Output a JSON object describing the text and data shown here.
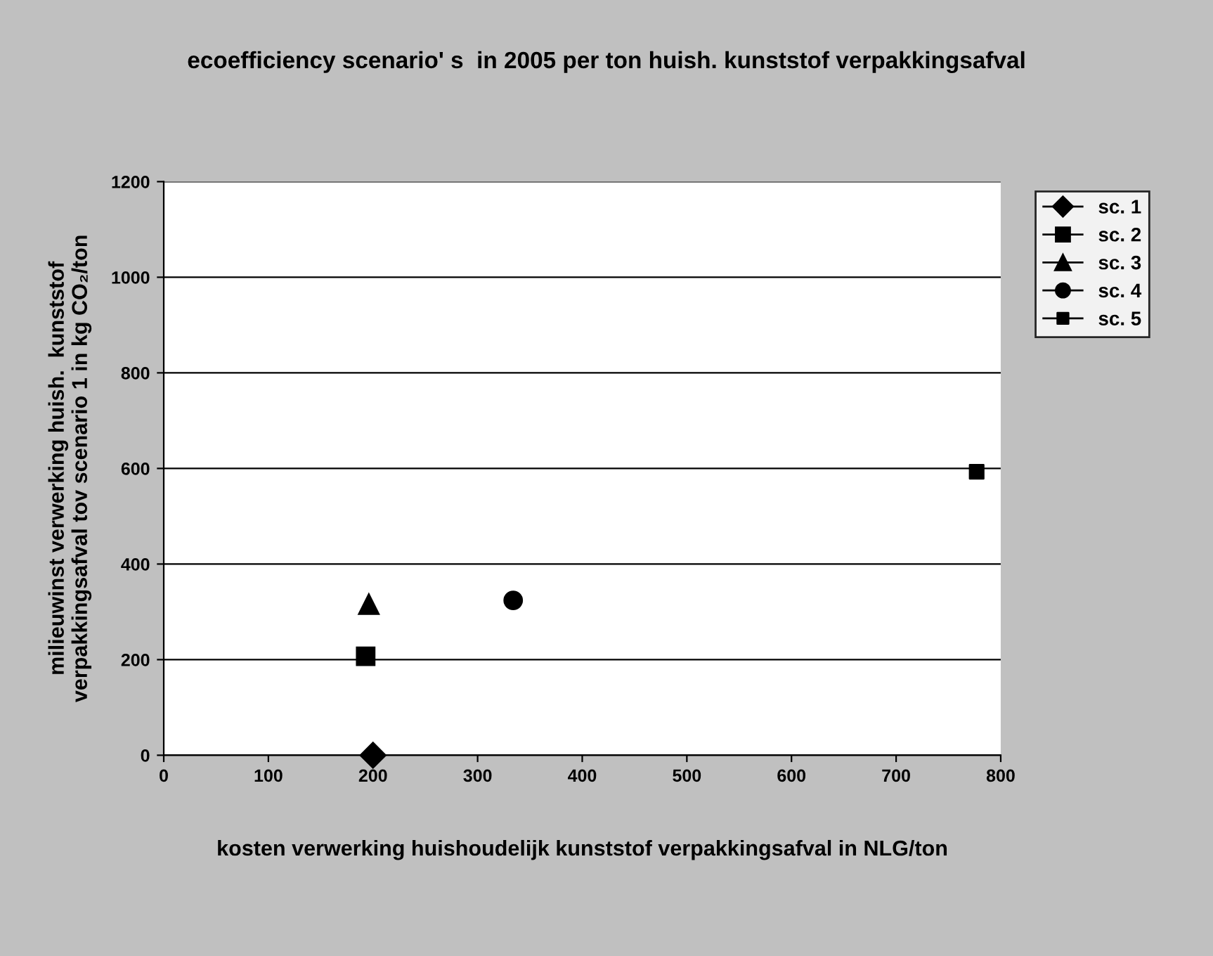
{
  "chart_data": {
    "type": "scatter",
    "title": "ecoefficiency scenario' s  in 2005 per ton huish. kunststof verpakkingsafval",
    "xlabel": "kosten verwerking huishoudelijk kunststof verpakkingsafval in NLG/ton",
    "ylabel": "milieuwinst verwerking huish.  kunststof\nverpakkingsafval tov scenario 1 in kg CO₂/ton",
    "xlim": [
      0,
      800
    ],
    "xticks": [
      0,
      100,
      200,
      300,
      400,
      500,
      600,
      700,
      800
    ],
    "ylim": [
      0,
      1200
    ],
    "yticks": [
      0,
      200,
      400,
      600,
      800,
      1000,
      1200
    ],
    "grid": "y",
    "legend": "right",
    "series": [
      {
        "name": "sc. 1",
        "color": "#000000",
        "marker": "diamond",
        "x": [
          200
        ],
        "values": [
          0
        ]
      },
      {
        "name": "sc. 2",
        "color": "#000000",
        "marker": "square",
        "x": [
          193
        ],
        "values": [
          207
        ]
      },
      {
        "name": "sc. 3",
        "color": "#000000",
        "marker": "triangle",
        "x": [
          196
        ],
        "values": [
          316
        ]
      },
      {
        "name": "sc. 4",
        "color": "#000000",
        "marker": "circle",
        "x": [
          334
        ],
        "values": [
          324
        ]
      },
      {
        "name": "sc. 5",
        "color": "#000000",
        "marker": "cross",
        "x": [
          777
        ],
        "values": [
          593
        ]
      }
    ]
  }
}
